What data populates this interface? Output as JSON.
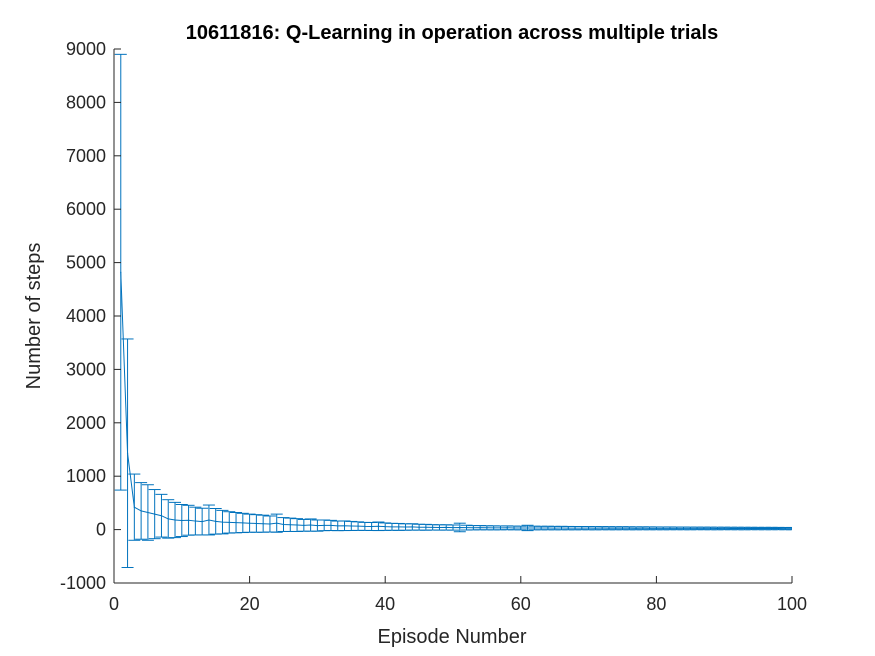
{
  "chart_data": {
    "type": "line",
    "title": "10611816: Q-Learning in operation across multiple trials",
    "xlabel": "Episode Number",
    "ylabel": "Number of steps",
    "xlim": [
      0,
      100
    ],
    "ylim": [
      -1000,
      9000
    ],
    "xticks": [
      "0",
      "20",
      "40",
      "60",
      "80",
      "100"
    ],
    "yticks": [
      "-1000",
      "0",
      "1000",
      "2000",
      "3000",
      "4000",
      "5000",
      "6000",
      "7000",
      "8000",
      "9000"
    ],
    "grid": false,
    "legend": "none",
    "color": "#0072BD",
    "series": [
      {
        "x": [
          1,
          2,
          3,
          4,
          5,
          6,
          7,
          8,
          9,
          10,
          11,
          12,
          13,
          14,
          15,
          16,
          17,
          18,
          19,
          20,
          21,
          22,
          23,
          24,
          25,
          26,
          27,
          28,
          29,
          30,
          31,
          32,
          33,
          34,
          35,
          36,
          37,
          38,
          39,
          40,
          41,
          42,
          43,
          44,
          45,
          46,
          47,
          48,
          49,
          50,
          51,
          52,
          53,
          54,
          55,
          56,
          57,
          58,
          59,
          60,
          61,
          62,
          63,
          64,
          65,
          66,
          67,
          68,
          69,
          70,
          71,
          72,
          73,
          74,
          75,
          76,
          77,
          78,
          79,
          80,
          81,
          82,
          83,
          84,
          85,
          86,
          87,
          88,
          89,
          90,
          91,
          92,
          93,
          94,
          95,
          96,
          97,
          98,
          99,
          100
        ],
        "values": [
          4820,
          1430,
          420,
          350,
          320,
          290,
          260,
          200,
          180,
          170,
          175,
          160,
          150,
          180,
          155,
          140,
          135,
          130,
          125,
          120,
          115,
          110,
          105,
          120,
          95,
          90,
          85,
          80,
          85,
          75,
          80,
          78,
          70,
          72,
          68,
          65,
          60,
          58,
          62,
          55,
          52,
          50,
          48,
          50,
          45,
          43,
          42,
          40,
          41,
          38,
          40,
          37,
          35,
          36,
          34,
          33,
          32,
          34,
          31,
          30,
          31,
          30,
          29,
          30,
          28,
          29,
          28,
          27,
          28,
          27,
          26,
          27,
          26,
          25,
          26,
          25,
          24,
          25,
          24,
          24,
          23,
          24,
          23,
          23,
          22,
          23,
          22,
          22,
          21,
          22,
          21,
          21,
          20,
          21,
          20,
          20,
          20,
          20,
          19,
          19
        ],
        "errors": [
          4080,
          2140,
          620,
          530,
          520,
          460,
          400,
          360,
          330,
          300,
          280,
          260,
          250,
          280,
          240,
          220,
          200,
          190,
          180,
          170,
          165,
          160,
          150,
          170,
          130,
          125,
          120,
          110,
          115,
          105,
          100,
          95,
          90,
          90,
          85,
          80,
          75,
          75,
          80,
          70,
          65,
          65,
          60,
          60,
          55,
          55,
          50,
          50,
          50,
          48,
          80,
          45,
          40,
          40,
          38,
          38,
          36,
          36,
          35,
          34,
          50,
          34,
          33,
          33,
          32,
          32,
          31,
          31,
          30,
          30,
          30,
          29,
          29,
          28,
          28,
          28,
          27,
          27,
          27,
          26,
          26,
          26,
          25,
          25,
          25,
          24,
          24,
          24,
          24,
          23,
          23,
          23,
          23,
          22,
          22,
          22,
          22,
          21,
          21,
          21
        ]
      }
    ]
  }
}
